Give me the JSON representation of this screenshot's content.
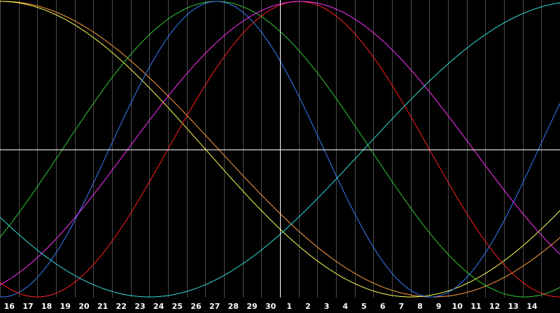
{
  "chart_data": {
    "type": "line",
    "x_ticks": [
      "16",
      "17",
      "18",
      "19",
      "20",
      "21",
      "22",
      "23",
      "24",
      "25",
      "26",
      "27",
      "28",
      "29",
      "30",
      "1",
      "2",
      "3",
      "4",
      "5",
      "6",
      "7",
      "8",
      "9",
      "10",
      "11",
      "12",
      "13",
      "14"
    ],
    "xlim": [
      15,
      45
    ],
    "ylim": [
      -1,
      1
    ],
    "grid": true,
    "markers": {
      "x_current": 30,
      "y_zero": 0
    },
    "series": [
      {
        "color": "#ff9f3a",
        "period": 46,
        "peak_x": 15.2
      },
      {
        "color": "#ffff55",
        "period": 44,
        "peak_x": 15.0
      },
      {
        "color": "#33cc33",
        "period": 33,
        "peak_x": 26.6
      },
      {
        "color": "#3a7cff",
        "period": 23,
        "peak_x": 26.6
      },
      {
        "color": "#ff2020",
        "period": 28,
        "peak_x": 31.0
      },
      {
        "color": "#ff33ff",
        "period": 37,
        "peak_x": 31.1
      },
      {
        "color": "#33dddd",
        "period": 46,
        "peak_x": 0.0
      }
    ],
    "background": "#000000",
    "grid_color": "#4a4a4a",
    "axis_color": "#ffffff"
  }
}
